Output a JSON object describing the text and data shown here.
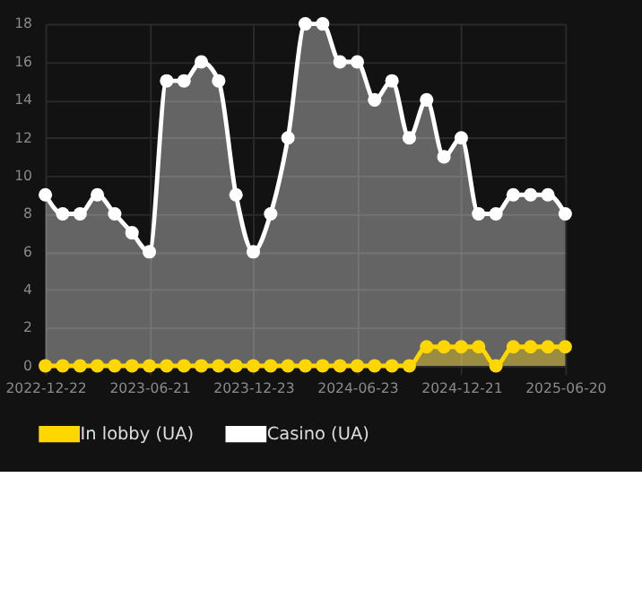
{
  "chart_data": {
    "type": "area",
    "categories": [
      "2022-12-22",
      null,
      null,
      null,
      null,
      null,
      "2023-06-21",
      null,
      null,
      null,
      null,
      null,
      "2023-12-23",
      null,
      null,
      null,
      null,
      null,
      "2024-06-23",
      null,
      null,
      null,
      null,
      null,
      "2024-12-21",
      null,
      null,
      null,
      null,
      null,
      "2025-06-20"
    ],
    "series": [
      {
        "name": "In lobby (UA)",
        "color": "#ffd700",
        "values": [
          0,
          0,
          0,
          0,
          0,
          0,
          0,
          0,
          0,
          0,
          0,
          0,
          0,
          0,
          0,
          0,
          0,
          0,
          0,
          0,
          0,
          0,
          1,
          1,
          1,
          1,
          0,
          1,
          1,
          1,
          1
        ]
      },
      {
        "name": "Casino (UA)",
        "color": "#ffffff",
        "values": [
          9,
          8,
          8,
          9,
          8,
          7,
          6,
          15,
          15,
          16,
          15,
          9,
          6,
          8,
          12,
          18,
          18,
          16,
          16,
          14,
          15,
          12,
          14,
          11,
          12,
          8,
          8,
          9,
          9,
          9,
          8
        ]
      }
    ],
    "ylim": [
      0,
      18
    ],
    "yticks": [
      0,
      2,
      4,
      6,
      8,
      10,
      12,
      14,
      16,
      18
    ],
    "grid": true,
    "legend": "bottom",
    "marker": "circle"
  }
}
